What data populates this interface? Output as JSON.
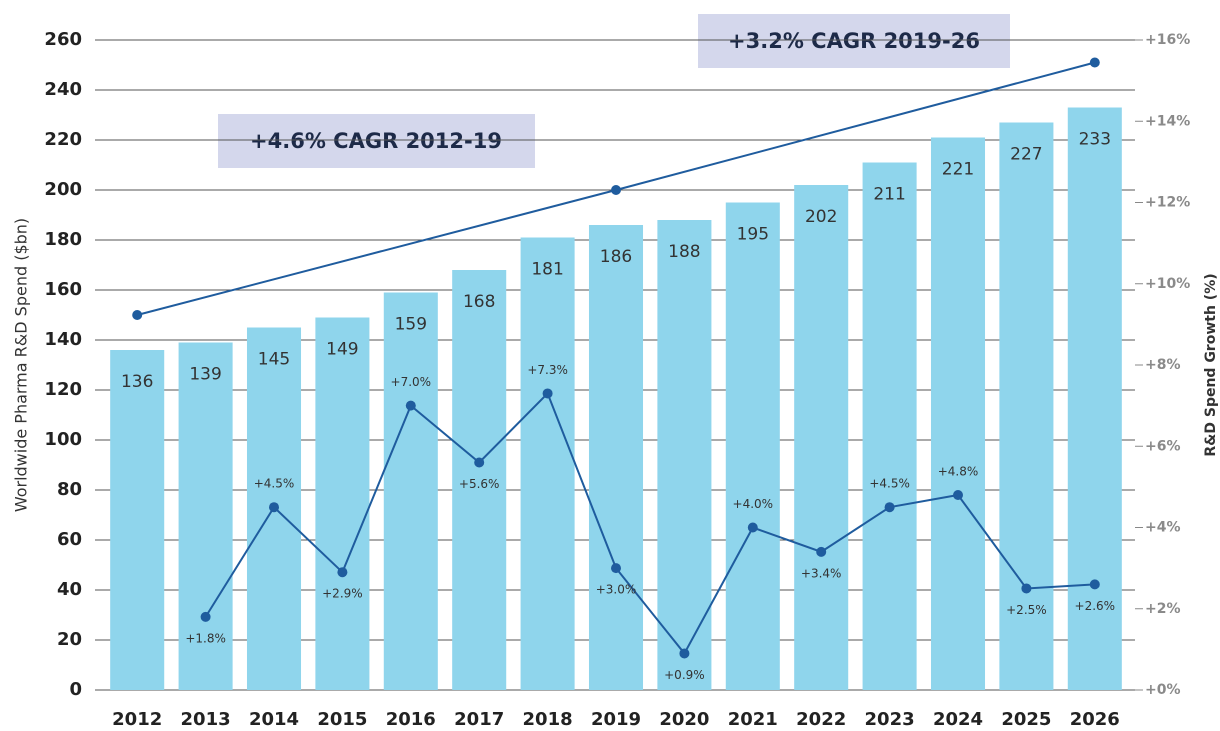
{
  "chart_data": {
    "type": "bar",
    "categories": [
      "2012",
      "2013",
      "2014",
      "2015",
      "2016",
      "2017",
      "2018",
      "2019",
      "2020",
      "2021",
      "2022",
      "2023",
      "2024",
      "2025",
      "2026"
    ],
    "ylabel": "Worldwide  Pharma R&D Spend ($bn)",
    "y2label": "R&D Spend Growth (%)",
    "ylim": [
      0,
      260
    ],
    "yticks": [
      0,
      20,
      40,
      60,
      80,
      100,
      120,
      140,
      160,
      180,
      200,
      220,
      240,
      260
    ],
    "y2lim": [
      0,
      16
    ],
    "y2ticks": [
      {
        "value": 0,
        "label": "+0%"
      },
      {
        "value": 2,
        "label": "+2%"
      },
      {
        "value": 4,
        "label": "+4%"
      },
      {
        "value": 6,
        "label": "+6%"
      },
      {
        "value": 8,
        "label": "+8%"
      },
      {
        "value": 10,
        "label": "+10%"
      },
      {
        "value": 12,
        "label": "+12%"
      },
      {
        "value": 14,
        "label": "+14%"
      },
      {
        "value": 16,
        "label": "+16%"
      }
    ],
    "grid": true,
    "series": [
      {
        "type": "bar",
        "color": "#8fd5ec",
        "values": [
          136,
          139,
          145,
          149,
          159,
          168,
          181,
          186,
          188,
          195,
          202,
          211,
          221,
          227,
          233
        ]
      },
      {
        "type": "line",
        "axis": "y2",
        "color": "#1f5c9e",
        "values": [
          null,
          1.8,
          4.5,
          2.9,
          7.0,
          5.6,
          7.3,
          3.0,
          0.9,
          4.0,
          3.4,
          4.5,
          4.8,
          2.5,
          2.6
        ],
        "value_labels": [
          null,
          "+1.8%",
          "+4.5%",
          "+2.9%",
          "+7.0%",
          "+5.6%",
          "+7.3%",
          "+3.0%",
          "+0.9%",
          "+4.0%",
          "+3.4%",
          "+4.5%",
          "+4.8%",
          "+2.5%",
          "+2.6%"
        ]
      }
    ],
    "trend": {
      "color": "#1f5c9e",
      "x": [
        "2012",
        "2019",
        "2026"
      ],
      "values": [
        150,
        200,
        251
      ]
    },
    "annotations": [
      "+3.2% CAGR 2019-26",
      "+4.6% CAGR 2012-19"
    ]
  }
}
